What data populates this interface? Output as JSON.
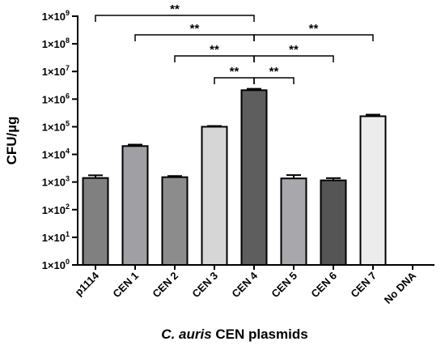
{
  "chart_data": {
    "type": "bar",
    "title": "",
    "xlabel_italic": "C. auris",
    "xlabel_rest": " CEN plasmids",
    "ylabel": "CFU/µg",
    "yscale": "log",
    "ylim": [
      1,
      1000000000
    ],
    "yticks": [
      {
        "value": 1,
        "mantissa": "1×10",
        "exp": "0"
      },
      {
        "value": 10,
        "mantissa": "1×10",
        "exp": "1"
      },
      {
        "value": 100,
        "mantissa": "1×10",
        "exp": "2"
      },
      {
        "value": 1000,
        "mantissa": "1×10",
        "exp": "3"
      },
      {
        "value": 10000,
        "mantissa": "1×10",
        "exp": "4"
      },
      {
        "value": 100000,
        "mantissa": "1×10",
        "exp": "5"
      },
      {
        "value": 1000000,
        "mantissa": "1×10",
        "exp": "6"
      },
      {
        "value": 10000000,
        "mantissa": "1×10",
        "exp": "7"
      },
      {
        "value": 100000000,
        "mantissa": "1×10",
        "exp": "8"
      },
      {
        "value": 1000000000,
        "mantissa": "1×10",
        "exp": "9"
      }
    ],
    "categories": [
      "p1114",
      "CEN 1",
      "CEN 2",
      "CEN 3",
      "CEN 4",
      "CEN 5",
      "CEN 6",
      "CEN 7",
      "No DNA"
    ],
    "values": [
      1400,
      20000,
      1500,
      100000,
      2100000,
      1350,
      1150,
      240000,
      null
    ],
    "errors_upper": [
      1750,
      22500,
      1650,
      107000,
      2350000,
      1780,
      1380,
      275000,
      null
    ],
    "bar_colors": [
      "#808080",
      "#a0a0a4",
      "#8c8c8c",
      "#d6d6d6",
      "#5e5e5e",
      "#a8a8ac",
      "#555555",
      "#ececec",
      "#ffffff"
    ],
    "significance": [
      {
        "from": 0,
        "to": 4,
        "label": "**"
      },
      {
        "from": 1,
        "to": 4,
        "label": "**"
      },
      {
        "from": 2,
        "to": 4,
        "label": "**"
      },
      {
        "from": 3,
        "to": 4,
        "label": "**"
      },
      {
        "from": 4,
        "to": 7,
        "label": "**"
      },
      {
        "from": 4,
        "to": 6,
        "label": "**"
      },
      {
        "from": 4,
        "to": 5,
        "label": "**"
      }
    ]
  }
}
